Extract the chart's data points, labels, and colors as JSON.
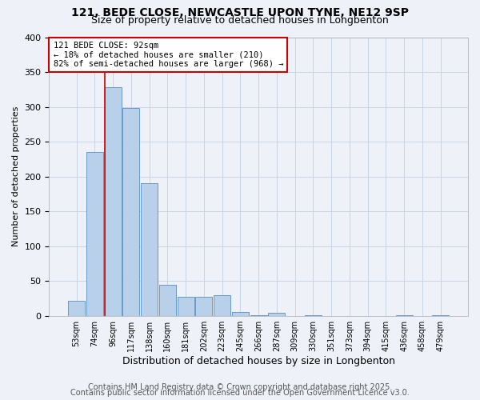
{
  "title": "121, BEDE CLOSE, NEWCASTLE UPON TYNE, NE12 9SP",
  "subtitle": "Size of property relative to detached houses in Longbenton",
  "xlabel": "Distribution of detached houses by size in Longbenton",
  "ylabel": "Number of detached properties",
  "bins": [
    "53sqm",
    "74sqm",
    "96sqm",
    "117sqm",
    "138sqm",
    "160sqm",
    "181sqm",
    "202sqm",
    "223sqm",
    "245sqm",
    "266sqm",
    "287sqm",
    "309sqm",
    "330sqm",
    "351sqm",
    "373sqm",
    "394sqm",
    "415sqm",
    "436sqm",
    "458sqm",
    "479sqm"
  ],
  "counts": [
    22,
    235,
    328,
    298,
    190,
    44,
    27,
    27,
    30,
    5,
    1,
    4,
    0,
    1,
    0,
    0,
    0,
    0,
    1,
    0,
    1
  ],
  "bar_color": "#b8d0ea",
  "bar_edge_color": "#6699cc",
  "vline_x_index": 2,
  "vline_color": "#cc0000",
  "annotation_text": "121 BEDE CLOSE: 92sqm\n← 18% of detached houses are smaller (210)\n82% of semi-detached houses are larger (968) →",
  "annotation_box_color": "#ffffff",
  "annotation_box_edge": "#cc0000",
  "ylim": [
    0,
    400
  ],
  "yticks": [
    0,
    50,
    100,
    150,
    200,
    250,
    300,
    350,
    400
  ],
  "grid_color": "#c8d4e4",
  "background_color": "#eef2f8",
  "footer_line1": "Contains HM Land Registry data © Crown copyright and database right 2025.",
  "footer_line2": "Contains public sector information licensed under the Open Government Licence v3.0.",
  "title_fontsize": 10,
  "subtitle_fontsize": 9,
  "ylabel_fontsize": 8,
  "xlabel_fontsize": 9,
  "footer_fontsize": 7
}
